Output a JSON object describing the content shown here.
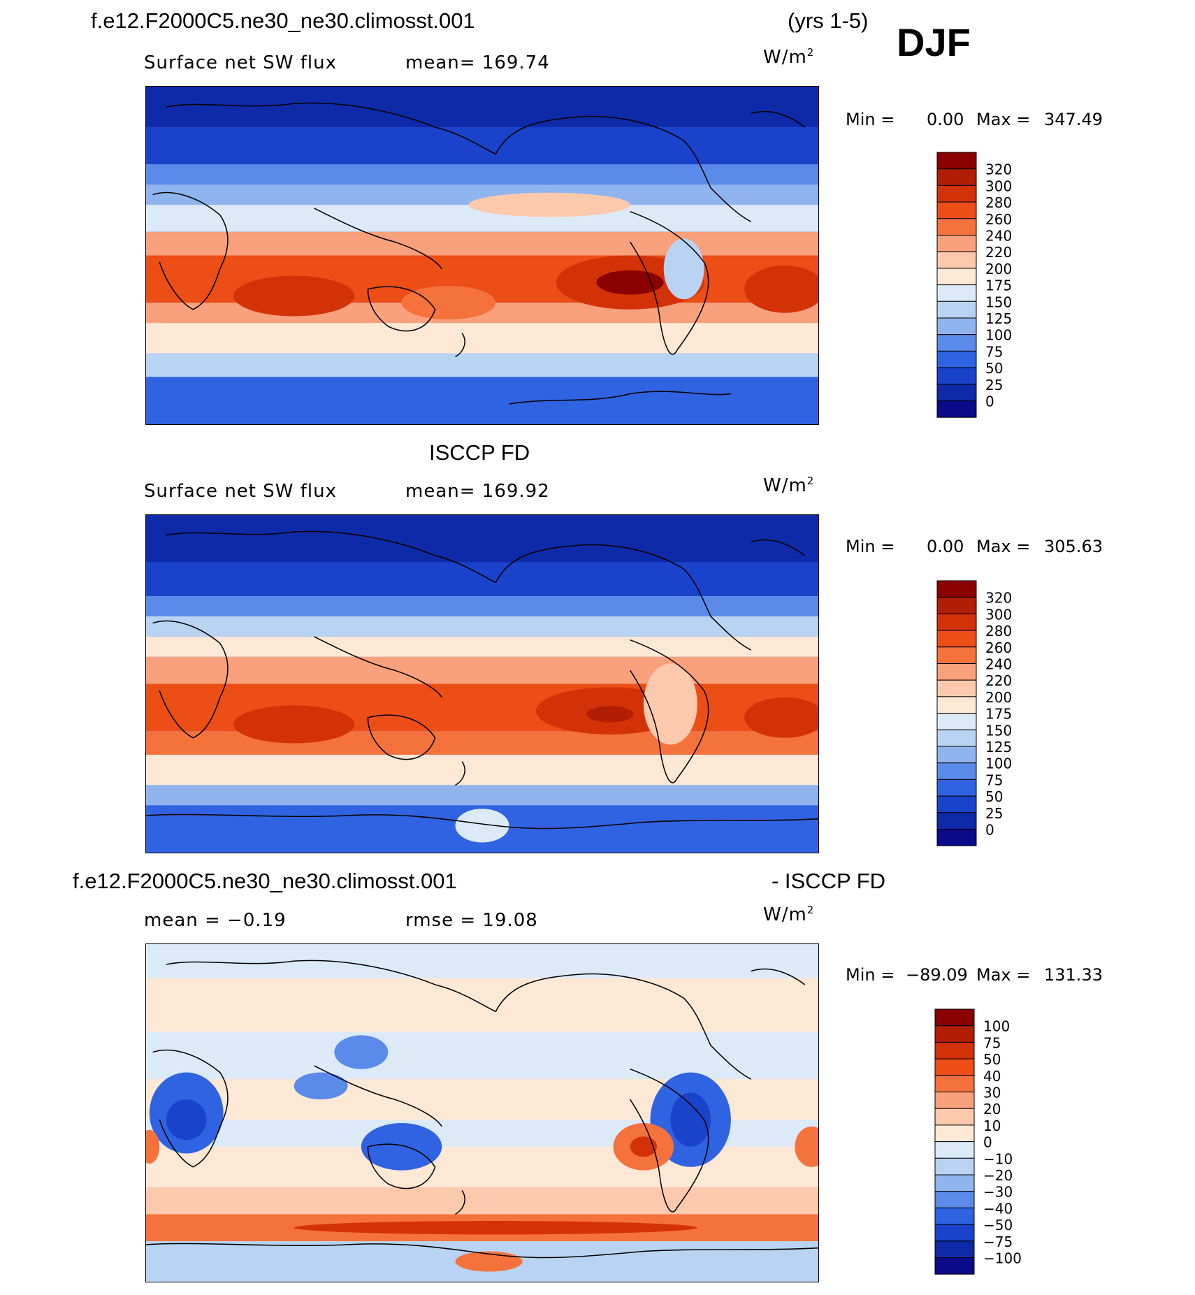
{
  "header": {
    "case_name": "f.e12.F2000C5.ne30_ne30.climosst.001",
    "years": "(yrs 1-5)",
    "season": "DJF"
  },
  "panel1": {
    "variable": "Surface net SW flux",
    "mean_text": "mean=  169.74",
    "units": "W/m",
    "units_exp": "2",
    "min_label": "Min =",
    "min_value": "0.00",
    "max_label": "Max  =",
    "max_value": "347.49"
  },
  "panel2": {
    "title": "ISCCP FD",
    "variable": "Surface net SW flux",
    "mean_text": "mean=  169.92",
    "units": "W/m",
    "units_exp": "2",
    "min_label": "Min =",
    "min_value": "0.00",
    "max_label": "Max  =",
    "max_value": "305.63"
  },
  "panel3": {
    "title_left": "f.e12.F2000C5.ne30_ne30.climosst.001",
    "title_right": "- ISCCP FD",
    "mean_text": "mean =   −0.19",
    "rmse_text": "rmse =    19.08",
    "units": "W/m",
    "units_exp": "2",
    "min_label": "Min =",
    "min_value": "−89.09",
    "max_label": "Max  =",
    "max_value": "131.33"
  },
  "colorbar_abs": {
    "levels": [
      "320",
      "300",
      "280",
      "260",
      "240",
      "220",
      "200",
      "175",
      "150",
      "125",
      "100",
      "75",
      "50",
      "25",
      "0"
    ],
    "colors": [
      "#8b0000",
      "#b21e04",
      "#d33208",
      "#ec4e16",
      "#f5723d",
      "#f9a07c",
      "#fcc9ad",
      "#fde8d6",
      "#dceaf8",
      "#b9d3f3",
      "#8fb4ee",
      "#5b8bea",
      "#2f63e1",
      "#1a43cc",
      "#0f2aa8",
      "#0a0a8a"
    ]
  },
  "colorbar_diff": {
    "levels": [
      "100",
      "75",
      "50",
      "40",
      "30",
      "20",
      "10",
      "0",
      "−10",
      "−20",
      "−30",
      "−40",
      "−50",
      "−75",
      "−100"
    ],
    "colors": [
      "#8b0000",
      "#b21e04",
      "#d33208",
      "#ec4e16",
      "#f5723d",
      "#f9a07c",
      "#fcc9ad",
      "#fde8d6",
      "#dceaf8",
      "#b9d3f3",
      "#8fb4ee",
      "#5b8bea",
      "#2f63e1",
      "#1a43cc",
      "#0f2aa8",
      "#0a0a8a"
    ]
  }
}
